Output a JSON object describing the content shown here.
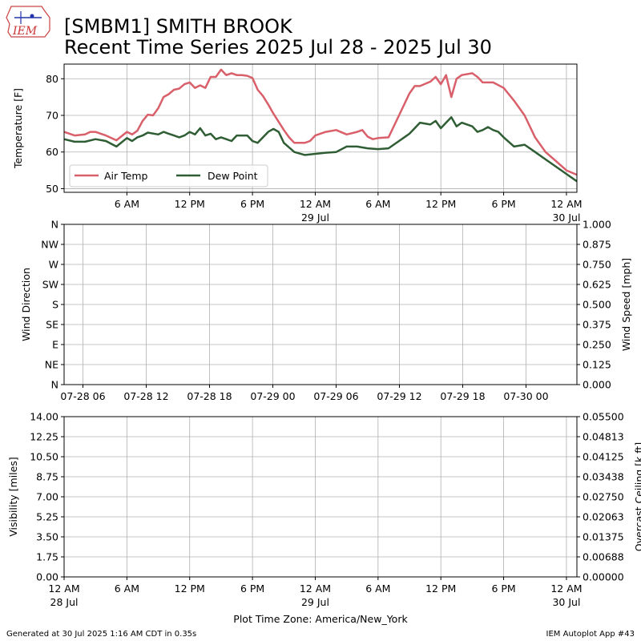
{
  "header": {
    "title_line1": "[SMBM1] SMITH BROOK",
    "title_line2": "Recent Time Series 2025 Jul 28 - 2025 Jul 30",
    "logo_text": "IEM"
  },
  "footer": {
    "generated": "Generated at 30 Jul 2025 1:16 AM CDT in 0.35s",
    "app": "IEM Autoplot App #43"
  },
  "colors": {
    "air_temp": "#d9606a",
    "dew_point": "#2f5d34",
    "ceiling_label": "#008000"
  },
  "chart_data": [
    {
      "type": "line",
      "ylabel": "Temperature [F]",
      "ylim": [
        49,
        84
      ],
      "xlim_hours": [
        0,
        49
      ],
      "yticks": [
        "50",
        "60",
        "70",
        "80"
      ],
      "xticks": [
        {
          "h": 6,
          "label": "6 AM",
          "sub": ""
        },
        {
          "h": 12,
          "label": "12 PM",
          "sub": ""
        },
        {
          "h": 18,
          "label": "6 PM",
          "sub": ""
        },
        {
          "h": 24,
          "label": "12 AM",
          "sub": "29 Jul"
        },
        {
          "h": 30,
          "label": "6 AM",
          "sub": ""
        },
        {
          "h": 36,
          "label": "12 PM",
          "sub": ""
        },
        {
          "h": 42,
          "label": "6 PM",
          "sub": ""
        },
        {
          "h": 48,
          "label": "12 AM",
          "sub": "30 Jul"
        }
      ],
      "legend_position": "lower-left",
      "series": [
        {
          "name": "Air Temp",
          "points": [
            [
              0,
              65.5
            ],
            [
              1,
              64.5
            ],
            [
              2,
              64.8
            ],
            [
              2.5,
              65.5
            ],
            [
              3,
              65.5
            ],
            [
              4,
              64.5
            ],
            [
              5,
              63.2
            ],
            [
              6,
              65.5
            ],
            [
              6.5,
              64.8
            ],
            [
              7,
              65.8
            ],
            [
              7.5,
              68.5
            ],
            [
              8,
              70.2
            ],
            [
              8.5,
              70
            ],
            [
              9,
              72
            ],
            [
              9.5,
              75
            ],
            [
              10,
              75.8
            ],
            [
              10.5,
              77
            ],
            [
              11,
              77.3
            ],
            [
              11.5,
              78.5
            ],
            [
              12,
              79
            ],
            [
              12.5,
              77.5
            ],
            [
              13,
              78.2
            ],
            [
              13.5,
              77.5
            ],
            [
              14,
              80.5
            ],
            [
              14.5,
              80.5
            ],
            [
              15,
              82.5
            ],
            [
              15.5,
              81
            ],
            [
              16,
              81.5
            ],
            [
              16.5,
              81
            ],
            [
              17,
              81
            ],
            [
              17.5,
              80.8
            ],
            [
              18,
              80.2
            ],
            [
              18.5,
              77
            ],
            [
              19,
              75.3
            ],
            [
              19.5,
              73
            ],
            [
              20,
              70.5
            ],
            [
              21,
              66
            ],
            [
              21.5,
              64
            ],
            [
              22,
              62.5
            ],
            [
              23,
              62.5
            ],
            [
              23.5,
              63
            ],
            [
              24,
              64.5
            ],
            [
              25,
              65.5
            ],
            [
              26,
              66
            ],
            [
              27,
              64.8
            ],
            [
              28,
              65.5
            ],
            [
              28.5,
              66
            ],
            [
              29,
              64.2
            ],
            [
              29.5,
              63.5
            ],
            [
              30,
              63.8
            ],
            [
              31,
              64
            ],
            [
              32,
              70
            ],
            [
              33,
              76
            ],
            [
              33.5,
              78
            ],
            [
              34,
              78
            ],
            [
              35,
              79.2
            ],
            [
              35.5,
              80.5
            ],
            [
              36,
              78.5
            ],
            [
              36.5,
              81
            ],
            [
              37,
              75
            ],
            [
              37.5,
              80
            ],
            [
              38,
              81
            ],
            [
              39,
              81.5
            ],
            [
              39.5,
              80.5
            ],
            [
              40,
              79
            ],
            [
              41,
              79
            ],
            [
              42,
              77.5
            ],
            [
              43,
              74
            ],
            [
              44,
              70
            ],
            [
              45,
              64
            ],
            [
              46,
              60
            ],
            [
              47,
              57.5
            ],
            [
              48,
              55
            ],
            [
              49,
              53.8
            ]
          ]
        },
        {
          "name": "Dew Point",
          "points": [
            [
              0,
              63.5
            ],
            [
              1,
              62.8
            ],
            [
              2,
              62.8
            ],
            [
              3,
              63.5
            ],
            [
              4,
              63
            ],
            [
              5,
              61.5
            ],
            [
              6,
              63.8
            ],
            [
              6.5,
              63
            ],
            [
              7,
              64
            ],
            [
              7.5,
              64.5
            ],
            [
              8,
              65.3
            ],
            [
              9,
              64.8
            ],
            [
              9.5,
              65.5
            ],
            [
              10,
              65
            ],
            [
              10.5,
              64.5
            ],
            [
              11,
              64
            ],
            [
              11.5,
              64.5
            ],
            [
              12,
              65.5
            ],
            [
              12.5,
              64.8
            ],
            [
              13,
              66.5
            ],
            [
              13.5,
              64.5
            ],
            [
              14,
              65
            ],
            [
              14.5,
              63.5
            ],
            [
              15,
              64
            ],
            [
              15.5,
              63.5
            ],
            [
              16,
              63
            ],
            [
              16.5,
              64.5
            ],
            [
              17,
              64.5
            ],
            [
              17.5,
              64.5
            ],
            [
              18,
              63
            ],
            [
              18.5,
              62.5
            ],
            [
              19,
              64
            ],
            [
              19.5,
              65.5
            ],
            [
              20,
              66.3
            ],
            [
              20.5,
              65.5
            ],
            [
              21,
              62.5
            ],
            [
              22,
              60
            ],
            [
              23,
              59.2
            ],
            [
              24,
              59.5
            ],
            [
              25,
              59.8
            ],
            [
              26,
              60
            ],
            [
              27,
              61.5
            ],
            [
              28,
              61.5
            ],
            [
              29,
              61
            ],
            [
              30,
              60.8
            ],
            [
              31,
              61
            ],
            [
              32,
              63
            ],
            [
              33,
              65
            ],
            [
              33.5,
              66.5
            ],
            [
              34,
              68
            ],
            [
              35,
              67.5
            ],
            [
              35.5,
              68.5
            ],
            [
              36,
              66.5
            ],
            [
              36.5,
              68
            ],
            [
              37,
              69.5
            ],
            [
              37.5,
              67
            ],
            [
              38,
              68
            ],
            [
              39,
              67
            ],
            [
              39.5,
              65.5
            ],
            [
              40,
              66
            ],
            [
              40.5,
              66.8
            ],
            [
              41,
              66
            ],
            [
              41.5,
              65.5
            ],
            [
              42,
              64
            ],
            [
              43,
              61.5
            ],
            [
              44,
              62
            ],
            [
              45,
              60
            ],
            [
              46,
              58
            ],
            [
              47,
              56
            ],
            [
              48,
              54
            ],
            [
              49,
              52
            ]
          ]
        }
      ]
    },
    {
      "type": "line",
      "ylabel": "Wind Direction",
      "ylabel_right": "Wind Speed [mph]",
      "ylim": [
        0,
        360
      ],
      "yticks_left": [
        "N",
        "NW",
        "W",
        "SW",
        "S",
        "SE",
        "E",
        "NE",
        "N"
      ],
      "yticks_right": [
        "1.000",
        "0.875",
        "0.750",
        "0.625",
        "0.500",
        "0.375",
        "0.250",
        "0.125",
        "0.000"
      ],
      "xticks": [
        "07-28 06",
        "07-28 12",
        "07-28 18",
        "07-29 00",
        "07-29 06",
        "07-29 12",
        "07-29 18",
        "07-30 00"
      ],
      "series": []
    },
    {
      "type": "line",
      "ylabel": "Visibility [miles]",
      "ylabel_right": "Overcast Ceiling [k ft]",
      "ylim": [
        0,
        14
      ],
      "yticks_left": [
        "14.00",
        "12.25",
        "10.50",
        "8.75",
        "7.00",
        "5.25",
        "3.50",
        "1.75",
        "0.00"
      ],
      "yticks_right": [
        "0.05500",
        "0.04813",
        "0.04125",
        "0.03438",
        "0.02750",
        "0.02063",
        "0.01375",
        "0.00688",
        "0.00000"
      ],
      "xticks": [
        {
          "label": "12 AM",
          "sub": "28 Jul"
        },
        {
          "label": "6 AM",
          "sub": ""
        },
        {
          "label": "12 PM",
          "sub": ""
        },
        {
          "label": "6 PM",
          "sub": ""
        },
        {
          "label": "12 AM",
          "sub": "29 Jul"
        },
        {
          "label": "6 AM",
          "sub": ""
        },
        {
          "label": "12 PM",
          "sub": ""
        },
        {
          "label": "6 PM",
          "sub": ""
        },
        {
          "label": "12 AM",
          "sub": "30 Jul"
        }
      ],
      "xlabel": "Plot Time Zone: America/New_York",
      "series": []
    }
  ]
}
